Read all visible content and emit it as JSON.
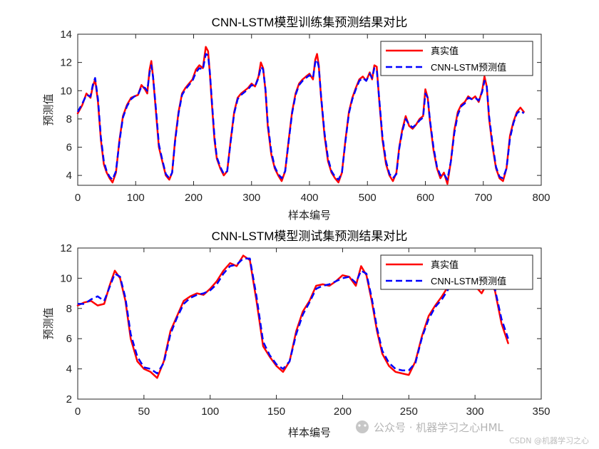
{
  "chart_data": [
    {
      "type": "line",
      "title": "CNN-LSTM模型训练集预测结果对比",
      "xlabel": "样本编号",
      "ylabel": "预测值",
      "xlim": [
        0,
        800
      ],
      "ylim": [
        3.3,
        14
      ],
      "xticks": [
        0,
        100,
        200,
        300,
        400,
        500,
        600,
        700,
        800
      ],
      "yticks": [
        4,
        6,
        8,
        10,
        12,
        14
      ],
      "legend_position": "top-right",
      "series": [
        {
          "name": "真实值",
          "color": "#ff0000",
          "style": "solid",
          "width": 2.5,
          "x": [
            0,
            8,
            15,
            22,
            26,
            30,
            35,
            40,
            45,
            50,
            55,
            60,
            66,
            72,
            78,
            85,
            92,
            98,
            104,
            110,
            116,
            120,
            124,
            127,
            130,
            135,
            140,
            146,
            152,
            158,
            163,
            168,
            174,
            180,
            186,
            192,
            198,
            204,
            210,
            216,
            221,
            225,
            228,
            232,
            236,
            240,
            246,
            252,
            258,
            264,
            270,
            276,
            282,
            288,
            294,
            300,
            306,
            312,
            316,
            320,
            324,
            328,
            334,
            340,
            346,
            352,
            358,
            364,
            370,
            376,
            382,
            388,
            394,
            400,
            406,
            410,
            413,
            416,
            420,
            426,
            432,
            438,
            444,
            450,
            456,
            462,
            468,
            474,
            480,
            486,
            492,
            498,
            504,
            508,
            512,
            516,
            520,
            526,
            532,
            538,
            544,
            550,
            555,
            560,
            566,
            572,
            578,
            584,
            590,
            596,
            600,
            604,
            608,
            614,
            620,
            626,
            632,
            638,
            644,
            650,
            656,
            662,
            668,
            674,
            680,
            686,
            692,
            698,
            702,
            706,
            710,
            716,
            722,
            728,
            734,
            740,
            746,
            752,
            758,
            764,
            770
          ],
          "y": [
            8.4,
            9.0,
            9.8,
            9.5,
            10.3,
            10.8,
            9.2,
            6.5,
            4.8,
            4.2,
            3.8,
            3.5,
            4.2,
            6.5,
            8.2,
            9.0,
            9.5,
            9.6,
            9.7,
            10.4,
            10.1,
            9.8,
            11.5,
            12.1,
            11.0,
            8.5,
            6.0,
            5.0,
            4.0,
            3.7,
            4.2,
            6.5,
            8.5,
            9.8,
            10.2,
            10.5,
            10.8,
            11.5,
            11.8,
            11.6,
            13.1,
            12.8,
            11.2,
            8.8,
            6.5,
            5.2,
            4.5,
            4.0,
            4.3,
            6.5,
            8.5,
            9.5,
            9.8,
            10.0,
            10.2,
            10.5,
            10.3,
            11.0,
            12.0,
            11.6,
            10.0,
            7.5,
            5.5,
            4.5,
            4.0,
            3.6,
            4.3,
            6.5,
            8.5,
            9.8,
            10.5,
            10.8,
            11.0,
            11.2,
            10.8,
            12.2,
            12.6,
            11.8,
            9.5,
            6.8,
            5.0,
            4.2,
            3.8,
            3.5,
            4.2,
            6.5,
            8.5,
            9.5,
            10.2,
            10.8,
            11.0,
            10.7,
            11.3,
            10.8,
            11.8,
            11.7,
            9.5,
            6.5,
            4.8,
            4.0,
            3.6,
            4.2,
            6.0,
            7.2,
            8.2,
            7.5,
            7.3,
            7.6,
            8.0,
            8.2,
            10.1,
            9.5,
            7.8,
            5.8,
            4.5,
            3.8,
            4.2,
            3.4,
            5.0,
            7.2,
            8.5,
            9.0,
            9.2,
            9.6,
            9.4,
            9.6,
            9.2,
            10.0,
            11.0,
            10.3,
            8.0,
            6.0,
            4.5,
            3.8,
            3.6,
            4.5,
            6.8,
            7.8,
            8.5,
            8.8,
            8.5
          ]
        },
        {
          "name": "CNN-LSTM预测值",
          "color": "#0000ff",
          "style": "dashed",
          "width": 2.5,
          "x": [
            0,
            8,
            15,
            22,
            26,
            30,
            35,
            40,
            45,
            50,
            55,
            60,
            66,
            72,
            78,
            85,
            92,
            98,
            104,
            110,
            116,
            120,
            124,
            127,
            130,
            135,
            140,
            146,
            152,
            158,
            163,
            168,
            174,
            180,
            186,
            192,
            198,
            204,
            210,
            216,
            221,
            225,
            228,
            232,
            236,
            240,
            246,
            252,
            258,
            264,
            270,
            276,
            282,
            288,
            294,
            300,
            306,
            312,
            316,
            320,
            324,
            328,
            334,
            340,
            346,
            352,
            358,
            364,
            370,
            376,
            382,
            388,
            394,
            400,
            406,
            410,
            413,
            416,
            420,
            426,
            432,
            438,
            444,
            450,
            456,
            462,
            468,
            474,
            480,
            486,
            492,
            498,
            504,
            508,
            512,
            516,
            520,
            526,
            532,
            538,
            544,
            550,
            555,
            560,
            566,
            572,
            578,
            584,
            590,
            596,
            600,
            604,
            608,
            614,
            620,
            626,
            632,
            638,
            644,
            650,
            656,
            662,
            668,
            674,
            680,
            686,
            692,
            698,
            702,
            706,
            710,
            716,
            722,
            728,
            734,
            740,
            746,
            752,
            758,
            764,
            770
          ],
          "y": [
            8.5,
            9.1,
            9.7,
            9.6,
            10.4,
            10.9,
            9.4,
            6.7,
            5.0,
            4.3,
            3.9,
            3.7,
            4.3,
            6.4,
            8.1,
            8.9,
            9.4,
            9.6,
            9.7,
            10.3,
            10.2,
            10.0,
            11.3,
            11.8,
            11.0,
            8.7,
            6.2,
            5.1,
            4.1,
            3.8,
            4.2,
            6.4,
            8.4,
            9.7,
            10.1,
            10.4,
            10.7,
            11.3,
            11.6,
            11.5,
            12.6,
            12.5,
            11.3,
            9.0,
            6.7,
            5.3,
            4.6,
            4.1,
            4.3,
            6.4,
            8.4,
            9.4,
            9.7,
            9.9,
            10.1,
            10.4,
            10.3,
            10.9,
            11.7,
            11.5,
            10.1,
            7.7,
            5.7,
            4.6,
            4.1,
            3.8,
            4.3,
            6.4,
            8.4,
            9.7,
            10.4,
            10.7,
            10.9,
            11.1,
            10.9,
            12.0,
            12.2,
            11.7,
            9.6,
            7.0,
            5.2,
            4.3,
            3.9,
            3.7,
            4.2,
            6.4,
            8.4,
            9.4,
            10.1,
            10.7,
            10.9,
            10.7,
            11.2,
            10.9,
            11.6,
            11.5,
            9.6,
            6.7,
            5.0,
            4.1,
            3.8,
            4.1,
            5.9,
            7.1,
            8.0,
            7.6,
            7.4,
            7.6,
            7.9,
            8.1,
            9.8,
            9.5,
            7.9,
            6.0,
            4.6,
            4.0,
            4.1,
            3.7,
            5.0,
            7.0,
            8.3,
            8.9,
            9.1,
            9.5,
            9.4,
            9.5,
            9.3,
            9.9,
            10.7,
            10.3,
            8.2,
            6.2,
            4.6,
            3.9,
            3.8,
            4.5,
            6.6,
            7.7,
            8.4,
            8.6,
            8.4
          ]
        }
      ]
    },
    {
      "type": "line",
      "title": "CNN-LSTM模型测试集预测结果对比",
      "xlabel": "样本编号",
      "ylabel": "预测值",
      "xlim": [
        0,
        350
      ],
      "ylim": [
        2,
        12
      ],
      "xticks": [
        0,
        50,
        100,
        150,
        200,
        250,
        300,
        350
      ],
      "yticks": [
        2,
        4,
        6,
        8,
        10,
        12
      ],
      "legend_position": "top-right",
      "series": [
        {
          "name": "真实值",
          "color": "#ff0000",
          "style": "solid",
          "width": 2.5,
          "x": [
            0,
            5,
            10,
            15,
            20,
            24,
            28,
            32,
            36,
            40,
            45,
            50,
            55,
            60,
            65,
            70,
            75,
            80,
            85,
            90,
            95,
            100,
            105,
            110,
            115,
            120,
            125,
            130,
            135,
            140,
            145,
            150,
            155,
            160,
            165,
            170,
            175,
            180,
            185,
            190,
            195,
            200,
            205,
            210,
            214,
            218,
            222,
            226,
            230,
            235,
            240,
            245,
            250,
            255,
            260,
            265,
            270,
            275,
            280,
            285,
            290,
            295,
            300,
            305,
            310,
            315,
            320,
            325
          ],
          "y": [
            8.2,
            8.4,
            8.5,
            8.2,
            8.3,
            9.5,
            10.5,
            10.0,
            8.5,
            6.0,
            4.5,
            4.0,
            3.8,
            3.4,
            4.5,
            6.5,
            7.5,
            8.5,
            8.8,
            9.0,
            8.9,
            9.3,
            9.8,
            10.5,
            11.0,
            10.8,
            11.5,
            11.2,
            8.5,
            5.5,
            4.8,
            4.2,
            3.8,
            4.5,
            6.5,
            7.8,
            8.5,
            9.5,
            9.6,
            9.5,
            9.8,
            10.2,
            10.1,
            9.5,
            10.8,
            10.2,
            8.5,
            6.5,
            5.0,
            4.2,
            3.8,
            3.7,
            3.6,
            4.5,
            6.2,
            7.5,
            8.2,
            8.8,
            9.5,
            10.0,
            10.5,
            10.0,
            9.5,
            9.0,
            9.8,
            9.2,
            7.0,
            5.7
          ]
        },
        {
          "name": "CNN-LSTM预测值",
          "color": "#0000ff",
          "style": "dashed",
          "width": 2.5,
          "x": [
            0,
            5,
            10,
            15,
            20,
            24,
            28,
            32,
            36,
            40,
            45,
            50,
            55,
            60,
            65,
            70,
            75,
            80,
            85,
            90,
            95,
            100,
            105,
            110,
            115,
            120,
            125,
            130,
            135,
            140,
            145,
            150,
            155,
            160,
            165,
            170,
            175,
            180,
            185,
            190,
            195,
            200,
            205,
            210,
            214,
            218,
            222,
            226,
            230,
            235,
            240,
            245,
            250,
            255,
            260,
            265,
            270,
            275,
            280,
            285,
            290,
            295,
            300,
            305,
            310,
            315,
            320,
            325
          ],
          "y": [
            8.3,
            8.3,
            8.6,
            8.8,
            8.5,
            9.4,
            10.3,
            10.1,
            8.7,
            6.3,
            4.8,
            4.1,
            4.0,
            3.7,
            4.4,
            6.3,
            7.4,
            8.3,
            8.7,
            8.9,
            9.0,
            9.2,
            9.6,
            10.3,
            10.8,
            10.9,
            11.3,
            11.3,
            8.8,
            5.8,
            4.9,
            4.3,
            4.0,
            4.5,
            6.3,
            7.6,
            8.4,
            9.3,
            9.5,
            9.6,
            9.8,
            10.0,
            10.1,
            9.7,
            10.5,
            10.3,
            8.7,
            6.7,
            5.2,
            4.4,
            4.0,
            3.9,
            3.9,
            4.4,
            6.1,
            7.3,
            8.1,
            8.6,
            9.3,
            9.8,
            10.3,
            10.1,
            9.7,
            9.3,
            9.6,
            9.3,
            7.3,
            6.0
          ]
        }
      ]
    }
  ],
  "watermark": {
    "text_main": "公众号 · 机器学习之心HML",
    "text_small": "CSDN @机器学习之心"
  }
}
